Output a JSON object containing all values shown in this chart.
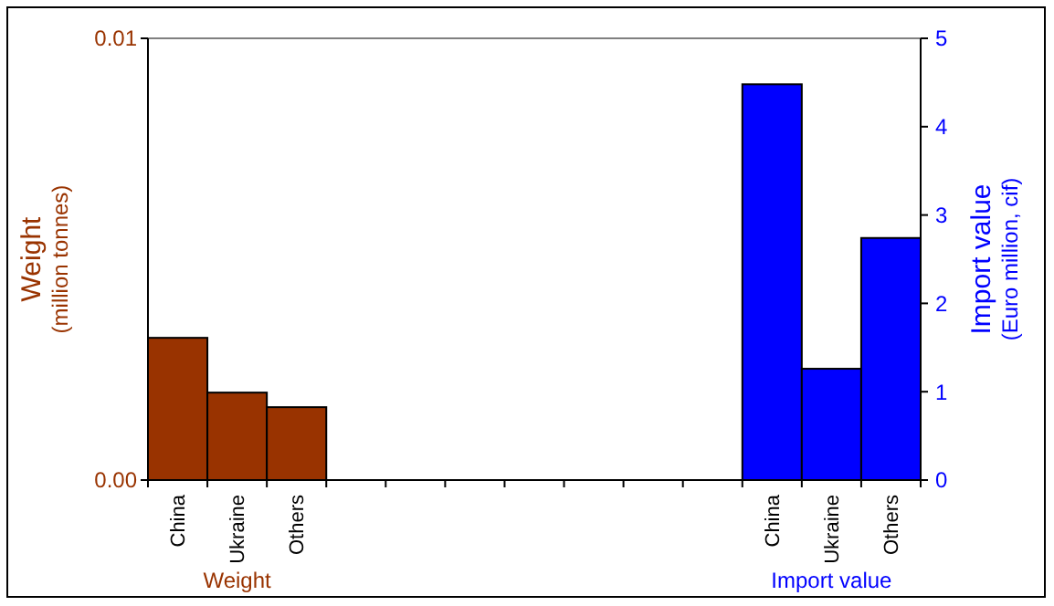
{
  "chart_data": {
    "type": "bar",
    "categories": [
      "China",
      "Ukraine",
      "Others",
      null,
      null,
      null,
      null,
      null,
      null,
      null,
      "China",
      "Ukraine",
      "Others"
    ],
    "series": [
      {
        "name": "Weight",
        "color": "#993300",
        "values": [
          0.00322,
          0.00198,
          0.00165,
          null,
          null,
          null,
          null,
          null,
          null,
          null,
          null,
          null,
          null
        ]
      },
      {
        "name": "Import value",
        "color": "#0000ff",
        "axis": "y2",
        "values": [
          null,
          null,
          null,
          null,
          null,
          null,
          null,
          null,
          null,
          null,
          4.48,
          1.26,
          2.74
        ]
      }
    ],
    "ylabel": "Weight\n(million tonnes)",
    "y2label": "Import value\n(Euro million, cif)",
    "ylim": [
      0,
      0.01
    ],
    "yticks": [
      {
        "value": 0,
        "label": "0.00"
      },
      0.01
    ],
    "y2lim": [
      0,
      5
    ],
    "y2ticks": [
      0,
      1,
      2,
      3,
      4,
      5
    ]
  }
}
